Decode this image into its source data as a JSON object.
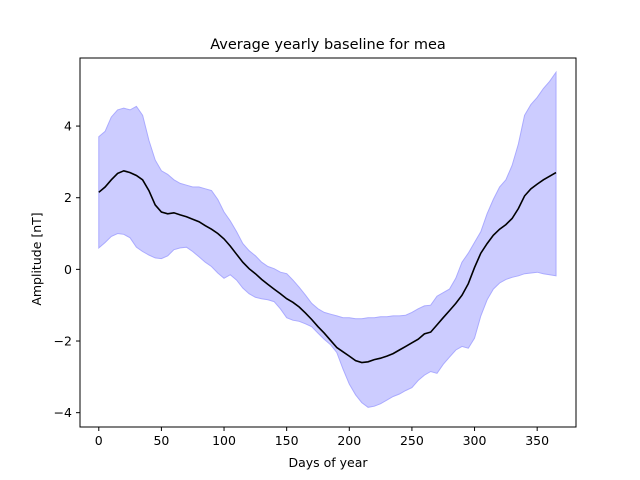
{
  "chart_data": {
    "type": "line",
    "title": "Average yearly baseline for mea",
    "xlabel": "Days of year",
    "ylabel": "Amplitude [nT]",
    "xlim": [
      -15,
      381
    ],
    "ylim": [
      -4.4,
      5.9
    ],
    "xticks": [
      0,
      50,
      100,
      150,
      200,
      250,
      300,
      350
    ],
    "yticks": [
      -4,
      -2,
      0,
      2,
      4
    ],
    "grid": false,
    "colors": {
      "mean": "#000000",
      "band_fill": "#ccccff",
      "band_edge": "#aaaaff"
    },
    "series": [
      {
        "role": "mean",
        "x": [
          0,
          5,
          10,
          15,
          20,
          25,
          30,
          35,
          40,
          45,
          50,
          55,
          60,
          65,
          70,
          75,
          80,
          85,
          90,
          95,
          100,
          105,
          110,
          115,
          120,
          125,
          130,
          135,
          140,
          145,
          150,
          155,
          160,
          165,
          170,
          175,
          180,
          185,
          190,
          195,
          200,
          205,
          210,
          215,
          220,
          225,
          230,
          235,
          240,
          245,
          250,
          255,
          260,
          265,
          270,
          275,
          280,
          285,
          290,
          295,
          300,
          305,
          310,
          315,
          320,
          325,
          330,
          335,
          340,
          345,
          350,
          355,
          360,
          365
        ],
        "y": [
          2.15,
          2.3,
          2.5,
          2.68,
          2.75,
          2.7,
          2.62,
          2.5,
          2.2,
          1.8,
          1.6,
          1.55,
          1.58,
          1.52,
          1.47,
          1.4,
          1.33,
          1.22,
          1.12,
          1.0,
          0.85,
          0.65,
          0.42,
          0.2,
          0.02,
          -0.12,
          -0.28,
          -0.42,
          -0.55,
          -0.68,
          -0.82,
          -0.92,
          -1.05,
          -1.22,
          -1.4,
          -1.6,
          -1.78,
          -1.98,
          -2.18,
          -2.3,
          -2.42,
          -2.55,
          -2.6,
          -2.58,
          -2.52,
          -2.48,
          -2.42,
          -2.35,
          -2.25,
          -2.15,
          -2.05,
          -1.95,
          -1.8,
          -1.75,
          -1.55,
          -1.35,
          -1.15,
          -0.95,
          -0.72,
          -0.4,
          0.05,
          0.45,
          0.72,
          0.95,
          1.12,
          1.25,
          1.42,
          1.7,
          2.05,
          2.25,
          2.38,
          2.5,
          2.6,
          2.7
        ]
      },
      {
        "role": "upper",
        "x": [
          0,
          5,
          10,
          15,
          20,
          25,
          30,
          35,
          40,
          45,
          50,
          55,
          60,
          65,
          70,
          75,
          80,
          85,
          90,
          95,
          100,
          105,
          110,
          115,
          120,
          125,
          130,
          135,
          140,
          145,
          150,
          155,
          160,
          165,
          170,
          175,
          180,
          185,
          190,
          195,
          200,
          205,
          210,
          215,
          220,
          225,
          230,
          235,
          240,
          245,
          250,
          255,
          260,
          265,
          270,
          275,
          280,
          285,
          290,
          295,
          300,
          305,
          310,
          315,
          320,
          325,
          330,
          335,
          340,
          345,
          350,
          355,
          360,
          365
        ],
        "y": [
          3.7,
          3.85,
          4.25,
          4.45,
          4.5,
          4.45,
          4.55,
          4.3,
          3.6,
          3.05,
          2.75,
          2.65,
          2.5,
          2.4,
          2.35,
          2.3,
          2.3,
          2.25,
          2.2,
          1.95,
          1.6,
          1.35,
          1.05,
          0.72,
          0.52,
          0.38,
          0.2,
          0.08,
          0.02,
          -0.08,
          -0.12,
          -0.3,
          -0.5,
          -0.72,
          -0.95,
          -1.1,
          -1.2,
          -1.25,
          -1.3,
          -1.35,
          -1.35,
          -1.38,
          -1.38,
          -1.35,
          -1.35,
          -1.32,
          -1.32,
          -1.3,
          -1.3,
          -1.28,
          -1.2,
          -1.1,
          -1.02,
          -1.0,
          -0.75,
          -0.65,
          -0.55,
          -0.25,
          0.2,
          0.45,
          0.75,
          1.05,
          1.55,
          1.95,
          2.3,
          2.5,
          2.9,
          3.5,
          4.3,
          4.6,
          4.8,
          5.05,
          5.25,
          5.5
        ]
      },
      {
        "role": "lower",
        "x": [
          0,
          5,
          10,
          15,
          20,
          25,
          30,
          35,
          40,
          45,
          50,
          55,
          60,
          65,
          70,
          75,
          80,
          85,
          90,
          95,
          100,
          105,
          110,
          115,
          120,
          125,
          130,
          135,
          140,
          145,
          150,
          155,
          160,
          165,
          170,
          175,
          180,
          185,
          190,
          195,
          200,
          205,
          210,
          215,
          220,
          225,
          230,
          235,
          240,
          245,
          250,
          255,
          260,
          265,
          270,
          275,
          280,
          285,
          290,
          295,
          300,
          305,
          310,
          315,
          320,
          325,
          330,
          335,
          340,
          345,
          350,
          355,
          360,
          365
        ],
        "y": [
          0.6,
          0.75,
          0.92,
          1.0,
          0.98,
          0.88,
          0.62,
          0.5,
          0.4,
          0.32,
          0.3,
          0.38,
          0.55,
          0.6,
          0.62,
          0.5,
          0.35,
          0.2,
          0.08,
          -0.1,
          -0.25,
          -0.15,
          -0.3,
          -0.52,
          -0.68,
          -0.78,
          -0.82,
          -0.85,
          -0.9,
          -1.1,
          -1.35,
          -1.42,
          -1.45,
          -1.52,
          -1.6,
          -1.78,
          -1.95,
          -2.1,
          -2.32,
          -2.78,
          -3.2,
          -3.5,
          -3.72,
          -3.85,
          -3.82,
          -3.75,
          -3.65,
          -3.55,
          -3.48,
          -3.38,
          -3.3,
          -3.1,
          -2.95,
          -2.85,
          -2.9,
          -2.65,
          -2.45,
          -2.25,
          -2.15,
          -2.2,
          -1.92,
          -1.3,
          -0.85,
          -0.55,
          -0.38,
          -0.28,
          -0.22,
          -0.18,
          -0.12,
          -0.1,
          -0.08,
          -0.12,
          -0.15,
          -0.18
        ]
      }
    ]
  }
}
